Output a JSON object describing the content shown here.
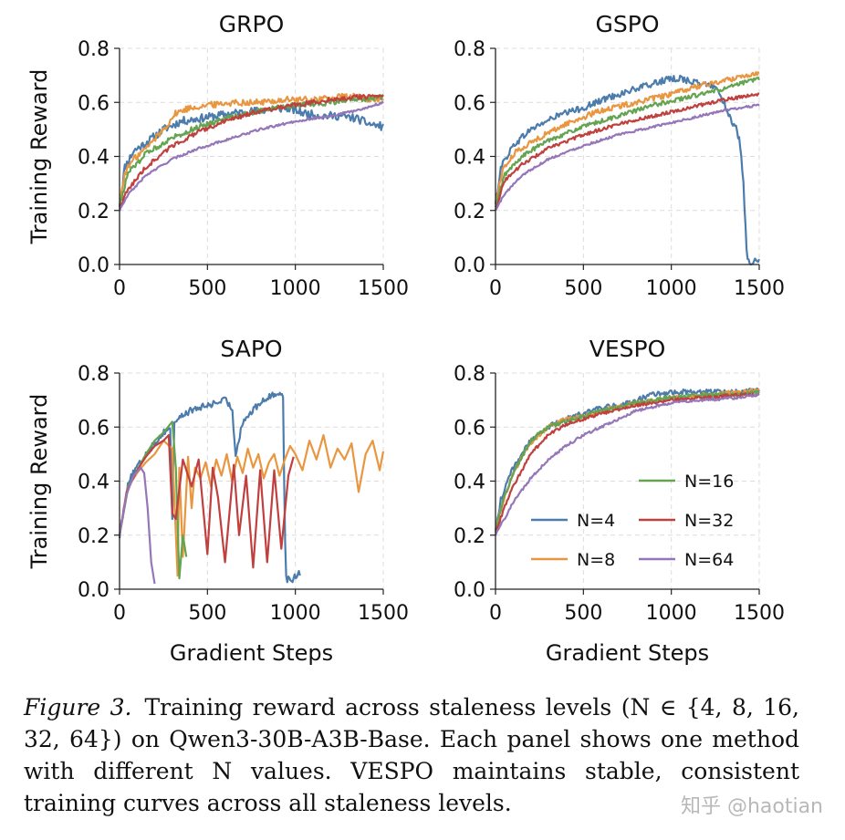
{
  "chart_data": [
    {
      "type": "line",
      "title": "GRPO",
      "xlabel": "",
      "ylabel": "Training Reward",
      "xlim": [
        0,
        1500
      ],
      "ylim": [
        0,
        0.8
      ],
      "grid": true,
      "xticks": [
        "0",
        "500",
        "1000",
        "1500"
      ],
      "yticks": [
        "0.0",
        "0.2",
        "0.4",
        "0.6",
        "0.8"
      ],
      "series": [
        {
          "name": "N=4",
          "x": [
            0,
            30,
            80,
            150,
            250,
            350,
            450,
            550,
            650,
            800,
            950,
            1050,
            1150,
            1250,
            1350,
            1420,
            1500
          ],
          "y": [
            0.22,
            0.36,
            0.42,
            0.45,
            0.5,
            0.53,
            0.54,
            0.55,
            0.56,
            0.57,
            0.58,
            0.56,
            0.55,
            0.55,
            0.54,
            0.52,
            0.51
          ],
          "noise": 0.015
        },
        {
          "name": "N=8",
          "x": [
            0,
            30,
            80,
            150,
            250,
            320,
            400,
            500,
            650,
            800,
            950,
            1100,
            1250,
            1350,
            1450,
            1500
          ],
          "y": [
            0.22,
            0.34,
            0.39,
            0.43,
            0.5,
            0.56,
            0.58,
            0.59,
            0.6,
            0.6,
            0.61,
            0.61,
            0.62,
            0.62,
            0.61,
            0.61
          ],
          "noise": 0.012
        },
        {
          "name": "N=16",
          "x": [
            0,
            50,
            150,
            300,
            450,
            600,
            800,
            1000,
            1200,
            1350,
            1500
          ],
          "y": [
            0.22,
            0.34,
            0.41,
            0.47,
            0.51,
            0.54,
            0.57,
            0.59,
            0.6,
            0.61,
            0.62
          ],
          "noise": 0.01
        },
        {
          "name": "N=32",
          "x": [
            0,
            50,
            150,
            300,
            450,
            600,
            800,
            1000,
            1200,
            1350,
            1500
          ],
          "y": [
            0.21,
            0.28,
            0.36,
            0.44,
            0.49,
            0.53,
            0.57,
            0.59,
            0.61,
            0.62,
            0.62
          ],
          "noise": 0.008
        },
        {
          "name": "N=64",
          "x": [
            0,
            50,
            150,
            300,
            450,
            600,
            800,
            1000,
            1200,
            1350,
            1500
          ],
          "y": [
            0.2,
            0.26,
            0.33,
            0.39,
            0.43,
            0.46,
            0.5,
            0.53,
            0.55,
            0.57,
            0.6
          ],
          "noise": 0.004
        }
      ]
    },
    {
      "type": "line",
      "title": "GSPO",
      "xlabel": "",
      "ylabel": "",
      "xlim": [
        0,
        1500
      ],
      "ylim": [
        0,
        0.8
      ],
      "grid": true,
      "xticks": [
        "0",
        "500",
        "1000",
        "1500"
      ],
      "yticks": [
        "0.0",
        "0.2",
        "0.4",
        "0.6",
        "0.8"
      ],
      "series": [
        {
          "name": "N=4",
          "x": [
            0,
            30,
            100,
            200,
            350,
            500,
            650,
            800,
            950,
            1050,
            1150,
            1250,
            1300,
            1330,
            1370,
            1390,
            1410,
            1430,
            1450,
            1470,
            1500
          ],
          "y": [
            0.22,
            0.36,
            0.44,
            0.5,
            0.55,
            0.58,
            0.62,
            0.65,
            0.68,
            0.69,
            0.67,
            0.66,
            0.6,
            0.55,
            0.5,
            0.45,
            0.3,
            0.02,
            0.0,
            0.01,
            0.01
          ],
          "noise": 0.012
        },
        {
          "name": "N=8",
          "x": [
            0,
            40,
            120,
            250,
            400,
            600,
            800,
            1000,
            1150,
            1300,
            1420,
            1500
          ],
          "y": [
            0.22,
            0.35,
            0.42,
            0.47,
            0.52,
            0.57,
            0.6,
            0.63,
            0.66,
            0.68,
            0.7,
            0.71
          ],
          "noise": 0.01
        },
        {
          "name": "N=16",
          "x": [
            0,
            50,
            150,
            300,
            500,
            700,
            900,
            1100,
            1300,
            1500
          ],
          "y": [
            0.21,
            0.33,
            0.4,
            0.46,
            0.51,
            0.55,
            0.59,
            0.62,
            0.65,
            0.69
          ],
          "noise": 0.008
        },
        {
          "name": "N=32",
          "x": [
            0,
            50,
            150,
            300,
            500,
            700,
            900,
            1100,
            1300,
            1500
          ],
          "y": [
            0.2,
            0.31,
            0.37,
            0.43,
            0.48,
            0.52,
            0.55,
            0.58,
            0.61,
            0.63
          ],
          "noise": 0.006
        },
        {
          "name": "N=64",
          "x": [
            0,
            50,
            150,
            300,
            500,
            700,
            900,
            1100,
            1300,
            1500
          ],
          "y": [
            0.2,
            0.26,
            0.33,
            0.39,
            0.44,
            0.48,
            0.51,
            0.54,
            0.57,
            0.59
          ],
          "noise": 0.004
        }
      ]
    },
    {
      "type": "line",
      "title": "SAPO",
      "xlabel": "Gradient Steps",
      "ylabel": "Training Reward",
      "xlim": [
        0,
        1500
      ],
      "ylim": [
        0,
        0.8
      ],
      "grid": true,
      "xticks": [
        "0",
        "500",
        "1000",
        "1500"
      ],
      "yticks": [
        "0.0",
        "0.2",
        "0.4",
        "0.6",
        "0.8"
      ],
      "series": [
        {
          "name": "N=4",
          "x": [
            0,
            50,
            100,
            150,
            200,
            250,
            290,
            300,
            310,
            330,
            400,
            500,
            600,
            640,
            660,
            700,
            800,
            900,
            930,
            940,
            950,
            960,
            980,
            1000,
            1030
          ],
          "y": [
            0.2,
            0.4,
            0.45,
            0.5,
            0.54,
            0.58,
            0.6,
            0.25,
            0.62,
            0.63,
            0.66,
            0.68,
            0.7,
            0.67,
            0.5,
            0.62,
            0.69,
            0.73,
            0.72,
            0.2,
            0.02,
            0.05,
            0.03,
            0.05,
            0.06
          ],
          "noise": 0.012
        },
        {
          "name": "N=8",
          "x": [
            0,
            50,
            100,
            150,
            200,
            250,
            300,
            330,
            340,
            360,
            390,
            410,
            430,
            460,
            490,
            520,
            550,
            580,
            610,
            640,
            670,
            700,
            730,
            760,
            790,
            820,
            850,
            880,
            910,
            940,
            970,
            1000,
            1040,
            1080,
            1120,
            1160,
            1200,
            1240,
            1280,
            1320,
            1360,
            1400,
            1440,
            1480,
            1500
          ],
          "y": [
            0.2,
            0.38,
            0.43,
            0.47,
            0.5,
            0.55,
            0.52,
            0.05,
            0.45,
            0.12,
            0.49,
            0.3,
            0.45,
            0.41,
            0.47,
            0.38,
            0.48,
            0.42,
            0.5,
            0.4,
            0.49,
            0.43,
            0.52,
            0.45,
            0.5,
            0.41,
            0.47,
            0.5,
            0.42,
            0.48,
            0.53,
            0.5,
            0.44,
            0.55,
            0.48,
            0.57,
            0.45,
            0.52,
            0.48,
            0.54,
            0.36,
            0.5,
            0.55,
            0.44,
            0.51
          ],
          "noise": 0.0
        },
        {
          "name": "N=16",
          "x": [
            0,
            50,
            100,
            150,
            200,
            250,
            300,
            320,
            340,
            360,
            380
          ],
          "y": [
            0.2,
            0.38,
            0.44,
            0.5,
            0.55,
            0.58,
            0.62,
            0.45,
            0.04,
            0.2,
            0.12
          ],
          "noise": 0.0
        },
        {
          "name": "N=32",
          "x": [
            0,
            40,
            100,
            150,
            200,
            250,
            280,
            300,
            320,
            360,
            410,
            450,
            500,
            530,
            560,
            600,
            650,
            680,
            720,
            760,
            800,
            840,
            880,
            920,
            960,
            990
          ],
          "y": [
            0.2,
            0.36,
            0.44,
            0.49,
            0.53,
            0.55,
            0.57,
            0.28,
            0.26,
            0.48,
            0.38,
            0.48,
            0.13,
            0.45,
            0.34,
            0.1,
            0.46,
            0.2,
            0.42,
            0.08,
            0.44,
            0.1,
            0.44,
            0.15,
            0.42,
            0.49
          ],
          "noise": 0.0
        },
        {
          "name": "N=64",
          "x": [
            0,
            40,
            80,
            120,
            140,
            160,
            180,
            200
          ],
          "y": [
            0.2,
            0.35,
            0.42,
            0.45,
            0.43,
            0.3,
            0.1,
            0.02
          ],
          "noise": 0.0
        }
      ]
    },
    {
      "type": "line",
      "title": "VESPO",
      "xlabel": "Gradient Steps",
      "ylabel": "",
      "xlim": [
        0,
        1500
      ],
      "ylim": [
        0,
        0.8
      ],
      "grid": true,
      "xticks": [
        "0",
        "500",
        "1000",
        "1500"
      ],
      "yticks": [
        "0.0",
        "0.2",
        "0.4",
        "0.6",
        "0.8"
      ],
      "legend_position": "lower right",
      "series": [
        {
          "name": "N=4",
          "x": [
            0,
            30,
            100,
            200,
            300,
            400,
            500,
            600,
            700,
            800,
            900,
            1000,
            1100,
            1200,
            1300,
            1400,
            1500
          ],
          "y": [
            0.22,
            0.33,
            0.45,
            0.55,
            0.6,
            0.63,
            0.65,
            0.67,
            0.68,
            0.7,
            0.72,
            0.73,
            0.73,
            0.73,
            0.73,
            0.73,
            0.74
          ],
          "noise": 0.01
        },
        {
          "name": "N=8",
          "x": [
            0,
            40,
            100,
            200,
            300,
            400,
            500,
            600,
            800,
            1000,
            1200,
            1400,
            1500
          ],
          "y": [
            0.22,
            0.32,
            0.43,
            0.54,
            0.6,
            0.63,
            0.64,
            0.66,
            0.69,
            0.71,
            0.72,
            0.73,
            0.74
          ],
          "noise": 0.008
        },
        {
          "name": "N=16",
          "x": [
            0,
            40,
            100,
            200,
            300,
            400,
            500,
            600,
            800,
            1000,
            1200,
            1400,
            1500
          ],
          "y": [
            0.22,
            0.32,
            0.43,
            0.55,
            0.6,
            0.62,
            0.64,
            0.66,
            0.69,
            0.71,
            0.72,
            0.72,
            0.73
          ],
          "noise": 0.008
        },
        {
          "name": "N=32",
          "x": [
            0,
            50,
            100,
            200,
            300,
            400,
            500,
            600,
            800,
            1000,
            1200,
            1400,
            1500
          ],
          "y": [
            0.21,
            0.3,
            0.38,
            0.5,
            0.57,
            0.61,
            0.63,
            0.65,
            0.68,
            0.7,
            0.71,
            0.72,
            0.72
          ],
          "noise": 0.006
        },
        {
          "name": "N=64",
          "x": [
            0,
            50,
            100,
            200,
            300,
            400,
            500,
            600,
            800,
            1000,
            1200,
            1400,
            1500
          ],
          "y": [
            0.2,
            0.26,
            0.32,
            0.41,
            0.48,
            0.53,
            0.57,
            0.6,
            0.66,
            0.69,
            0.7,
            0.71,
            0.72
          ],
          "noise": 0.005
        }
      ]
    }
  ],
  "series_colors": {
    "N=4": "#4c7cac",
    "N=8": "#e99640",
    "N=16": "#64a350",
    "N=32": "#c0403e",
    "N=64": "#9576b8"
  },
  "legend": {
    "entries": [
      "N=16",
      "N=4",
      "N=32",
      "N=8",
      "N=64"
    ]
  },
  "caption": {
    "figure_label": "Figure 3.",
    "text": "Training reward across staleness levels (N ∈ {4, 8, 16, 32, 64}) on Qwen3-30B-A3B-Base. Each panel shows one method with different N values. VESPO maintains stable, consistent training curves across all staleness levels."
  },
  "watermark": "知乎 @haotian"
}
